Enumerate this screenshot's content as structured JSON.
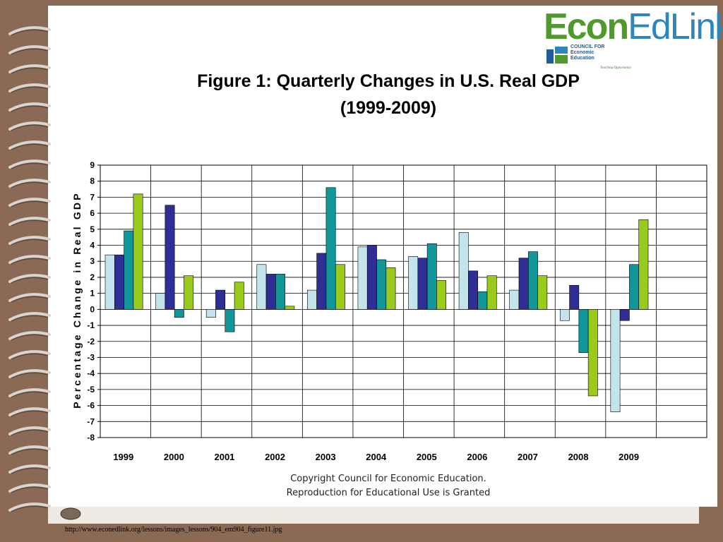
{
  "logo": {
    "econ": "Econ",
    "edlink": "EdLink",
    "sub": "COUNCIL FOR\nEconomic\nEducation",
    "tagline": "Teaching Opportunity"
  },
  "chart_title_line1": "Figure 1: Quarterly Changes in U.S. Real GDP",
  "chart_title_line2": "(1999-2009)",
  "copyright_line1": "Copyright Council for Economic Education.",
  "copyright_line2": "Reproduction for Educational Use is Granted",
  "source_url": "http://www.econedlink.org/lessons/images_lessons/904_em904_figure11.jpg",
  "colors": {
    "frame": "#8b6a55",
    "q1": "#c2e4ea",
    "q2": "#2e2e94",
    "q3": "#11979a",
    "q4": "#9acb1c"
  },
  "chart_data": {
    "type": "bar",
    "title": "Figure 1: Quarterly Changes in U.S. Real GDP (1999-2009)",
    "xlabel": "",
    "ylabel": "Percentage Change in Real GDP",
    "ylim": [
      -8,
      9
    ],
    "yticks": [
      9,
      8,
      7,
      6,
      5,
      4,
      3,
      2,
      1,
      0,
      -1,
      -2,
      -3,
      -4,
      -5,
      -6,
      -7,
      -8
    ],
    "categories": [
      "1999",
      "2000",
      "2001",
      "2002",
      "2003",
      "2004",
      "2005",
      "2006",
      "2007",
      "2008",
      "2009"
    ],
    "series": [
      {
        "color": "#c2e4ea",
        "values": [
          3.4,
          1.0,
          -0.5,
          2.8,
          1.2,
          3.9,
          3.3,
          4.8,
          1.2,
          -0.7,
          -6.4
        ]
      },
      {
        "color": "#2e2e94",
        "values": [
          3.4,
          6.5,
          1.2,
          2.2,
          3.5,
          4.0,
          3.2,
          2.4,
          3.2,
          1.5,
          -0.7
        ]
      },
      {
        "color": "#11979a",
        "values": [
          4.9,
          -0.5,
          -1.4,
          2.2,
          7.6,
          3.1,
          4.1,
          1.1,
          3.6,
          -2.7,
          2.8
        ]
      },
      {
        "color": "#9acb1c",
        "values": [
          7.2,
          2.1,
          1.7,
          0.2,
          2.8,
          2.6,
          1.8,
          2.1,
          2.1,
          -5.4,
          5.6
        ]
      }
    ],
    "grid": true,
    "legend": "none"
  }
}
